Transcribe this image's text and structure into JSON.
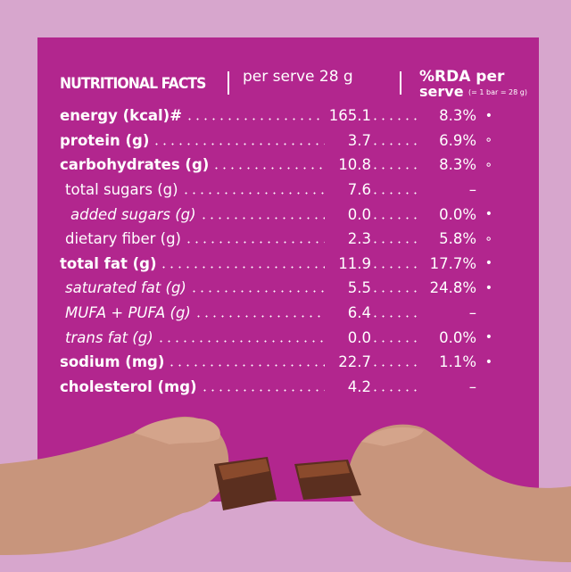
{
  "header": {
    "title": "NUTRITIONAL FACTS",
    "per_serve": "per serve 28 g",
    "rda": "%RDA per",
    "rda_serve": "serve",
    "rda_note": "(= 1 bar = 28 g)"
  },
  "table": {
    "rows": [
      {
        "label": "energy (kcal)#",
        "value": "165.1",
        "rda": "8.3%",
        "marker": "•",
        "style": "bold"
      },
      {
        "label": "protein (g)",
        "value": "3.7",
        "rda": "6.9%",
        "marker": "∘",
        "style": "bold"
      },
      {
        "label": "carbohydrates (g)",
        "value": "10.8",
        "rda": "8.3%",
        "marker": "∘",
        "style": "bold"
      },
      {
        "label": "total sugars (g)",
        "value": "7.6",
        "rda": "–",
        "style": "indent"
      },
      {
        "label": "added sugars (g)",
        "value": "0.0",
        "rda": "0.0%",
        "marker": "•",
        "style": "italic-indent"
      },
      {
        "label": "dietary fiber (g)",
        "value": "2.3",
        "rda": "5.8%",
        "marker": "∘",
        "style": "indent"
      },
      {
        "label": "total fat (g)",
        "value": "11.9",
        "rda": "17.7%",
        "marker": "•",
        "style": "bold"
      },
      {
        "label": "saturated fat (g)",
        "value": "5.5",
        "rda": "24.8%",
        "marker": "•",
        "style": "italic"
      },
      {
        "label": "MUFA + PUFA (g)",
        "value": "6.4",
        "rda": "–",
        "style": "italic"
      },
      {
        "label": "trans fat (g)",
        "value": "0.0",
        "rda": "0.0%",
        "marker": "•",
        "style": "italic"
      },
      {
        "label": "sodium (mg)",
        "value": "22.7",
        "rda": "1.1%",
        "marker": "•",
        "style": "bold"
      },
      {
        "label": "cholesterol (mg)",
        "value": "4.2",
        "rda": "–",
        "style": "bold"
      }
    ]
  }
}
